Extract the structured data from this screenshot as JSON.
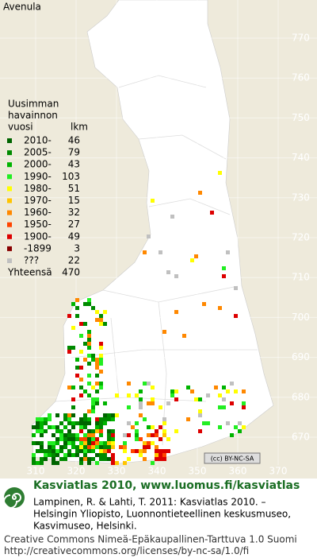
{
  "title": "Avenula",
  "legend": {
    "heading": [
      "Uusimman",
      "havainnon",
      "vuosi"
    ],
    "count_heading": "lkm",
    "rows": [
      {
        "label": "2010-",
        "count": 46,
        "color": "#006400"
      },
      {
        "label": "2005-",
        "count": 79,
        "color": "#008a00"
      },
      {
        "label": "2000-",
        "count": 43,
        "color": "#00b400"
      },
      {
        "label": "1990-",
        "count": 103,
        "color": "#22ee22"
      },
      {
        "label": "1980-",
        "count": 51,
        "color": "#ffff00"
      },
      {
        "label": "1970-",
        "count": 15,
        "color": "#ffc400"
      },
      {
        "label": "1960-",
        "count": 32,
        "color": "#ff8800"
      },
      {
        "label": "1950-",
        "count": 27,
        "color": "#ff4400"
      },
      {
        "label": "1900-",
        "count": 49,
        "color": "#dd0000"
      },
      {
        "label": "-1899",
        "count": 3,
        "color": "#880000"
      },
      {
        "label": "???",
        "count": 22,
        "color": "#c0c0c0"
      }
    ],
    "total_label": "Yhteensä",
    "total": 470
  },
  "grid": {
    "north": [
      770,
      760,
      750,
      740,
      730,
      720,
      710,
      700,
      690,
      680,
      670
    ],
    "east": [
      310,
      320,
      330,
      340,
      350,
      360,
      370
    ]
  },
  "badge": "(cc) BY-NC-SA",
  "footer": {
    "logo_text": "Kasviatlas 2010, www.luomus.fi/kasviatlas",
    "citation": [
      "Lampinen, R. & Lahti, T. 2011: Kasviatlas 2010. –",
      "Helsingin Yliopisto, Luonnontieteellinen keskusmuseo,",
      "Kasvimuseo, Helsinki."
    ],
    "license": [
      "Creative Commons Nimeä-Epäkaupallinen-Tarttuva 1.0 Suomi",
      "http://creativecommons.org/licenses/by-nc-sa/1.0/fi"
    ]
  }
}
